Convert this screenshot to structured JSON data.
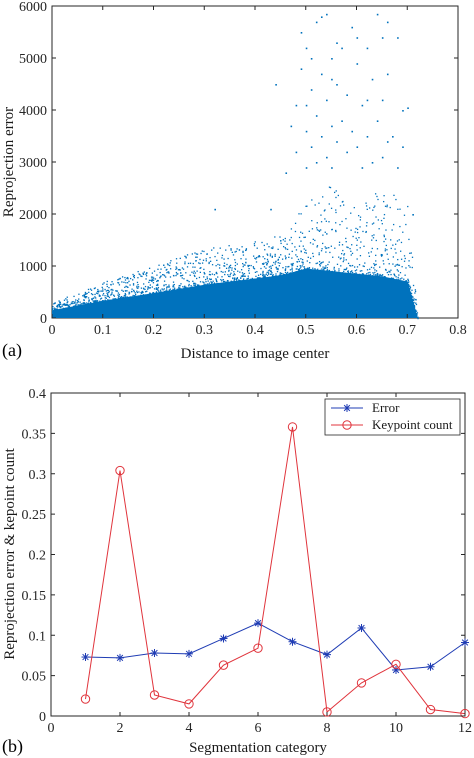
{
  "chart_data": [
    {
      "type": "scatter",
      "panel_label": "(a)",
      "xlabel": "Distance to image center",
      "ylabel": "Reprojection error",
      "xlim": [
        0,
        0.8
      ],
      "ylim": [
        0,
        6000
      ],
      "xticks": [
        0,
        0.1,
        0.2,
        0.3,
        0.4,
        0.5,
        0.6,
        0.7,
        0.8
      ],
      "xtick_labels": [
        "0",
        "0.1",
        "0.2",
        "0.3",
        "0.4",
        "0.5",
        "0.6",
        "0.7",
        "0.8"
      ],
      "yticks": [
        0,
        1000,
        2000,
        3000,
        4000,
        5000,
        6000
      ],
      "ytick_labels": [
        "0",
        "1000",
        "2000",
        "3000",
        "4000",
        "5000",
        "6000"
      ],
      "grid": false,
      "color": "#0072BD",
      "density_profile": {
        "x": [
          0.0,
          0.1,
          0.2,
          0.3,
          0.4,
          0.45,
          0.5,
          0.55,
          0.6,
          0.65,
          0.7,
          0.72
        ],
        "dense_upper": [
          150,
          330,
          480,
          640,
          760,
          820,
          950,
          900,
          850,
          800,
          700,
          0
        ],
        "sparse_upper": [
          300,
          700,
          1000,
          1350,
          1500,
          1600,
          2200,
          2600,
          2100,
          2600,
          2200,
          0
        ]
      },
      "outliers": [
        [
          0.32,
          2100
        ],
        [
          0.43,
          2100
        ],
        [
          0.44,
          4500
        ],
        [
          0.46,
          2800
        ],
        [
          0.48,
          4100
        ],
        [
          0.48,
          3200
        ],
        [
          0.49,
          5500
        ],
        [
          0.49,
          4800
        ],
        [
          0.5,
          5200
        ],
        [
          0.5,
          3600
        ],
        [
          0.5,
          2900
        ],
        [
          0.51,
          4400
        ],
        [
          0.51,
          3300
        ],
        [
          0.52,
          5700
        ],
        [
          0.52,
          3900
        ],
        [
          0.52,
          3000
        ],
        [
          0.53,
          5800
        ],
        [
          0.53,
          4700
        ],
        [
          0.53,
          3500
        ],
        [
          0.54,
          5850
        ],
        [
          0.54,
          4200
        ],
        [
          0.54,
          3100
        ],
        [
          0.55,
          5000
        ],
        [
          0.55,
          3700
        ],
        [
          0.55,
          2900
        ],
        [
          0.56,
          4500
        ],
        [
          0.56,
          3400
        ],
        [
          0.57,
          5200
        ],
        [
          0.57,
          3800
        ],
        [
          0.58,
          4300
        ],
        [
          0.58,
          3200
        ],
        [
          0.59,
          5600
        ],
        [
          0.59,
          3600
        ],
        [
          0.6,
          4900
        ],
        [
          0.6,
          3300
        ],
        [
          0.61,
          4100
        ],
        [
          0.61,
          2900
        ],
        [
          0.62,
          5200
        ],
        [
          0.62,
          3500
        ],
        [
          0.63,
          4600
        ],
        [
          0.63,
          3000
        ],
        [
          0.64,
          5850
        ],
        [
          0.64,
          3800
        ],
        [
          0.65,
          5400
        ],
        [
          0.65,
          4200
        ],
        [
          0.65,
          3100
        ],
        [
          0.66,
          5700
        ],
        [
          0.66,
          4700
        ],
        [
          0.66,
          3400
        ],
        [
          0.67,
          3500
        ],
        [
          0.68,
          5400
        ],
        [
          0.68,
          2900
        ],
        [
          0.69,
          4000
        ],
        [
          0.69,
          3300
        ],
        [
          0.7,
          4050
        ],
        [
          0.71,
          2000
        ],
        [
          0.47,
          3700
        ],
        [
          0.5,
          4100
        ],
        [
          0.56,
          5300
        ],
        [
          0.6,
          5400
        ],
        [
          0.62,
          4200
        ],
        [
          0.55,
          4600
        ],
        [
          0.51,
          5000
        ]
      ]
    },
    {
      "type": "line",
      "panel_label": "(b)",
      "xlabel": "Segmentation category",
      "ylabel": "Reprojection error & kepoint count",
      "xlim": [
        0,
        12
      ],
      "ylim": [
        0,
        0.4
      ],
      "xticks": [
        0,
        2,
        4,
        6,
        8,
        10,
        12
      ],
      "xtick_labels": [
        "0",
        "2",
        "4",
        "6",
        "8",
        "10",
        "12"
      ],
      "yticks": [
        0,
        0.05,
        0.1,
        0.15,
        0.2,
        0.25,
        0.3,
        0.35,
        0.4
      ],
      "ytick_labels": [
        "0",
        "0.05",
        "0.1",
        "0.15",
        "0.2",
        "0.25",
        "0.3",
        "0.35",
        "0.4"
      ],
      "grid": false,
      "legend_position": "top-right",
      "x": [
        1,
        2,
        3,
        4,
        5,
        6,
        7,
        8,
        9,
        10,
        11,
        12
      ],
      "series": [
        {
          "name": "Error",
          "color": "#1f3cb4",
          "marker": "asterisk",
          "values": [
            0.073,
            0.072,
            0.078,
            0.077,
            0.096,
            0.115,
            0.092,
            0.076,
            0.109,
            0.057,
            0.061,
            0.091
          ]
        },
        {
          "name": "Keypoint count",
          "color": "#e0343c",
          "marker": "circle",
          "values": [
            0.021,
            0.304,
            0.026,
            0.015,
            0.063,
            0.084,
            0.358,
            0.005,
            0.041,
            0.064,
            0.008,
            0.003
          ]
        }
      ]
    }
  ]
}
